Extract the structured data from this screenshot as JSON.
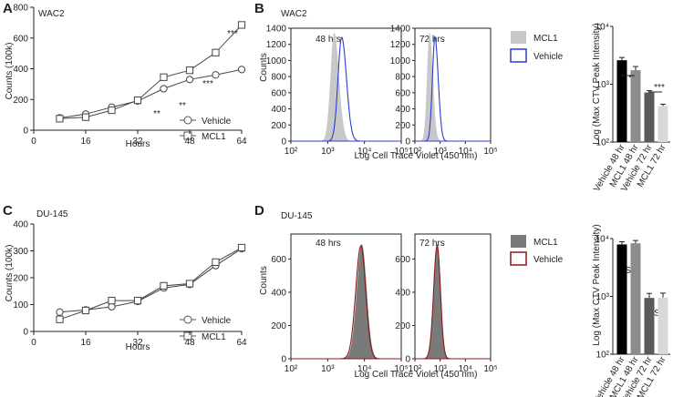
{
  "panels": {
    "a_label": "A",
    "b_label": "B",
    "c_label": "C",
    "d_label": "D",
    "wac2": "WAC2",
    "du145": "DU-145"
  },
  "growth_axes": {
    "xlabel": "Hours",
    "ylabel": "Counts (100k)",
    "xticks": [
      0,
      16,
      32,
      48,
      64
    ],
    "yticks_a": [
      0,
      200,
      400,
      600,
      800
    ],
    "yticks_c": [
      0,
      100,
      200,
      300,
      400
    ]
  },
  "hist_axes": {
    "xlabel": "Log Cell Trace Violet (450 nm)",
    "ylabel": "Counts",
    "xtick_labels": [
      "10²",
      "10³",
      "10⁴",
      "10⁵"
    ],
    "yticks_b": [
      0,
      200,
      400,
      600,
      800,
      1000,
      1200,
      1400
    ],
    "yticks_d": [
      0,
      200,
      400,
      600
    ],
    "time_48": "48 hrs",
    "time_72": "72 hrs"
  },
  "legends": {
    "vehicle": "Vehicle",
    "mcl1": "MCL1"
  },
  "bar_axes": {
    "ylabel": "Log (Max CTV Peak Intensity)",
    "ytick_labels": [
      "10²",
      "10³",
      "10⁴"
    ],
    "categories": [
      "Vehicle 48 hr",
      "MCL1 48 hr",
      "Vehicle 72 hr",
      "MCL1 72 hr"
    ]
  },
  "significance": {
    "a": [
      "**",
      "**",
      "***",
      "***"
    ],
    "b": [
      "**",
      "***"
    ],
    "d": [
      "NS",
      "NS"
    ]
  },
  "colors": {
    "vehicle_b": "#2b3fd0",
    "vehicle_d": "#8b1a1a",
    "mcl1_fill_b": "#c8c8c8",
    "mcl1_fill_d": "#7a7a7a",
    "bars": [
      "#000000",
      "#8c8c8c",
      "#5a5a5a",
      "#d8d8d8"
    ]
  },
  "chart_data": [
    {
      "panel": "A",
      "type": "line",
      "title": "WAC2",
      "xlabel": "Hours",
      "ylabel": "Counts (100k)",
      "xlim": [
        0,
        64
      ],
      "ylim": [
        0,
        800
      ],
      "series": [
        {
          "name": "Vehicle",
          "x": [
            8,
            16,
            24,
            32,
            40,
            48,
            56,
            64
          ],
          "y": [
            80,
            105,
            150,
            190,
            270,
            330,
            360,
            395
          ]
        },
        {
          "name": "MCL1",
          "x": [
            8,
            16,
            24,
            32,
            40,
            48,
            56,
            64
          ],
          "y": [
            75,
            85,
            130,
            195,
            345,
            390,
            505,
            685
          ]
        }
      ]
    },
    {
      "panel": "B",
      "type": "area",
      "title": "WAC2",
      "xlabel": "Log Cell Trace Violet (450 nm)",
      "ylabel": "Counts",
      "x_scale": "log",
      "xlim": [
        100,
        100000
      ],
      "ylim": [
        0,
        1400
      ],
      "subplots": [
        {
          "label": "48 hrs",
          "series": [
            {
              "name": "MCL1",
              "peak_x": 1500,
              "peak_y": 1350
            },
            {
              "name": "Vehicle",
              "peak_x": 2400,
              "peak_y": 1290
            }
          ]
        },
        {
          "label": "72 hrs",
          "series": [
            {
              "name": "MCL1",
              "peak_x": 380,
              "peak_y": 1350
            },
            {
              "name": "Vehicle",
              "peak_x": 620,
              "peak_y": 1290
            }
          ]
        }
      ]
    },
    {
      "panel": "B-bar",
      "type": "bar",
      "ylabel": "Log (Max CTV Peak Intensity)",
      "y_scale": "log",
      "ylim": [
        100,
        10000
      ],
      "categories": [
        "Vehicle 48 hr",
        "MCL1 48 hr",
        "Vehicle 72 hr",
        "MCL1 72 hr"
      ],
      "values": [
        2600,
        1750,
        720,
        420
      ]
    },
    {
      "panel": "C",
      "type": "line",
      "title": "DU-145",
      "xlabel": "Hours",
      "ylabel": "Counts (100k)",
      "xlim": [
        0,
        64
      ],
      "ylim": [
        0,
        400
      ],
      "series": [
        {
          "name": "Vehicle",
          "x": [
            8,
            16,
            24,
            32,
            40,
            48,
            56,
            64
          ],
          "y": [
            72,
            80,
            92,
            112,
            162,
            175,
            245,
            308
          ]
        },
        {
          "name": "MCL1",
          "x": [
            8,
            16,
            24,
            32,
            40,
            48,
            56,
            64
          ],
          "y": [
            45,
            78,
            115,
            115,
            170,
            178,
            258,
            312
          ]
        }
      ]
    },
    {
      "panel": "D",
      "type": "area",
      "title": "DU-145",
      "xlabel": "Log Cell Trace Violet (450 nm)",
      "ylabel": "Counts",
      "x_scale": "log",
      "xlim": [
        100,
        100000
      ],
      "ylim": [
        0,
        750
      ],
      "subplots": [
        {
          "label": "48 hrs",
          "series": [
            {
              "name": "MCL1",
              "peak_x": 8500,
              "peak_y": 690
            },
            {
              "name": "Vehicle",
              "peak_x": 8000,
              "peak_y": 680
            }
          ]
        },
        {
          "label": "72 hrs",
          "series": [
            {
              "name": "MCL1",
              "peak_x": 780,
              "peak_y": 690
            },
            {
              "name": "Vehicle",
              "peak_x": 760,
              "peak_y": 680
            }
          ]
        }
      ]
    },
    {
      "panel": "D-bar",
      "type": "bar",
      "ylabel": "Log (Max CTV Peak Intensity)",
      "y_scale": "log",
      "ylim": [
        100,
        10000
      ],
      "categories": [
        "Vehicle 48 hr",
        "MCL1 48 hr",
        "Vehicle 72 hr",
        "MCL1 72 hr"
      ],
      "values": [
        7900,
        8300,
        940,
        950
      ]
    }
  ]
}
